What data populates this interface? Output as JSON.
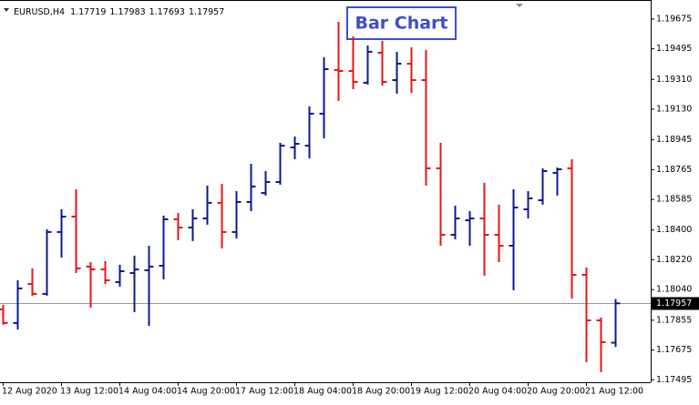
{
  "chart_data": {
    "type": "ohlc",
    "symbol": "EURUSD,H4",
    "title": "Bar Chart",
    "categories": [
      "12 Aug 2020",
      null,
      null,
      null,
      "13 Aug 12:00",
      null,
      null,
      null,
      "14 Aug 04:00",
      null,
      null,
      null,
      "14 Aug 20:00",
      null,
      null,
      null,
      "17 Aug 12:00",
      null,
      null,
      null,
      "18 Aug 04:00",
      null,
      null,
      null,
      "18 Aug 20:00",
      null,
      null,
      null,
      "19 Aug 12:00",
      null,
      null,
      null,
      "20 Aug 04:00",
      null,
      null,
      null,
      "20 Aug 20:00",
      null,
      null,
      null,
      "21 Aug 12:00",
      null,
      null
    ],
    "open": [
      1.1792,
      1.17838,
      1.18074,
      1.18014,
      1.18388,
      1.18481,
      1.18179,
      1.18162,
      1.18085,
      1.1814,
      1.18157,
      1.18184,
      1.18465,
      1.18415,
      1.1847,
      1.18564,
      1.18388,
      1.18569,
      1.18624,
      1.1869,
      1.18899,
      1.1891,
      1.19103,
      1.19367,
      1.19361,
      1.1929,
      1.19471,
      1.19306,
      1.19405,
      1.19306,
      1.18773,
      1.18371,
      1.18459,
      1.1847,
      1.18371,
      1.18305,
      1.18525,
      1.1858,
      1.18745,
      1.18773,
      1.18129,
      1.17854,
      1.17719
    ],
    "high": [
      1.17948,
      1.18096,
      1.18168,
      1.18404,
      1.18525,
      1.18646,
      1.18206,
      1.18212,
      1.1819,
      1.18245,
      1.18305,
      1.18487,
      1.18503,
      1.18525,
      1.18668,
      1.18679,
      1.18635,
      1.188,
      1.18756,
      1.18927,
      1.18965,
      1.19147,
      1.19444,
      1.19658,
      1.1957,
      1.19515,
      1.19543,
      1.19477,
      1.19504,
      1.19488,
      1.18927,
      1.18547,
      1.18514,
      1.18685,
      1.18553,
      1.18646,
      1.18635,
      1.18773,
      1.18778,
      1.18828,
      1.18173,
      1.17871,
      1.17983
    ],
    "low": [
      1.17827,
      1.17799,
      1.18003,
      1.18003,
      1.18234,
      1.1814,
      1.17931,
      1.18074,
      1.18058,
      1.17904,
      1.17821,
      1.18102,
      1.18338,
      1.18333,
      1.18432,
      1.18289,
      1.18349,
      1.18514,
      1.18608,
      1.18674,
      1.18828,
      1.18833,
      1.18954,
      1.1918,
      1.19251,
      1.19279,
      1.19273,
      1.19224,
      1.19229,
      1.18668,
      1.18305,
      1.18344,
      1.18305,
      1.18124,
      1.18206,
      1.18036,
      1.1847,
      1.18553,
      1.18608,
      1.17986,
      1.17601,
      1.17541,
      1.17693
    ],
    "close": [
      1.17838,
      1.18047,
      1.18014,
      1.18388,
      1.18481,
      1.18168,
      1.18162,
      1.18096,
      1.18151,
      1.18162,
      1.18179,
      1.18465,
      1.18415,
      1.1847,
      1.18564,
      1.18388,
      1.18569,
      1.18663,
      1.1869,
      1.1891,
      1.18921,
      1.19103,
      1.19372,
      1.19361,
      1.19295,
      1.19477,
      1.19295,
      1.19405,
      1.19306,
      1.18773,
      1.18371,
      1.1847,
      1.1847,
      1.18371,
      1.18305,
      1.18536,
      1.18591,
      1.18756,
      1.18767,
      1.18129,
      1.17854,
      1.17722,
      1.17957
    ],
    "up_color": "#0b1a8e",
    "down_color": "#e8141b",
    "ylim": [
      1.1748,
      1.1979
    ],
    "yticks": [
      1.19675,
      1.19495,
      {
        "value": 1.1931,
        "label": "1.19310"
      },
      {
        "value": 1.1913,
        "label": "1.19130"
      },
      1.18945,
      1.18765,
      1.18585,
      {
        "value": 1.184,
        "label": "1.18400"
      },
      {
        "value": 1.1822,
        "label": "1.18220"
      },
      {
        "value": 1.1804,
        "label": "1.18040"
      },
      1.17855,
      1.17675,
      1.17495
    ]
  }
}
